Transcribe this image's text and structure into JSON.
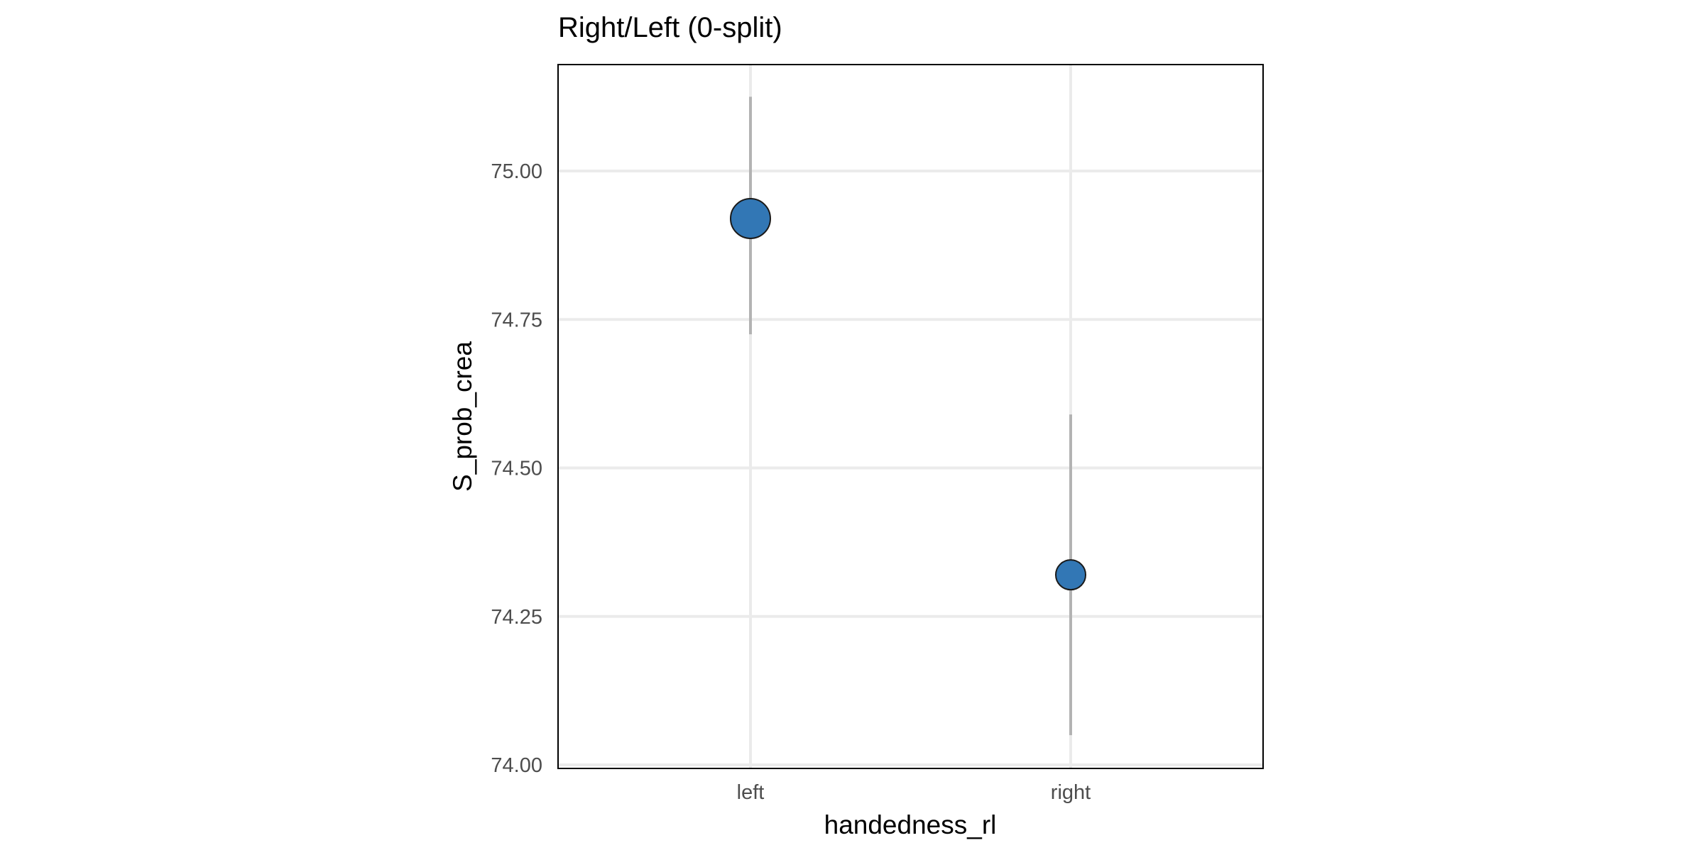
{
  "chart_data": {
    "type": "scatter",
    "title": "Right/Left (0-split)",
    "xlabel": "handedness_rl",
    "ylabel": "S_prob_crea",
    "categories": [
      "left",
      "right"
    ],
    "ylim": [
      74.0,
      75.18
    ],
    "y_ticks": [
      74.0,
      74.25,
      74.5,
      74.75,
      75.0
    ],
    "y_tick_labels": [
      "74.00",
      "74.25",
      "74.50",
      "74.75",
      "75.00"
    ],
    "grid": true,
    "legend": "none",
    "series": [
      {
        "values": [
          74.92,
          74.32
        ],
        "lower": [
          74.725,
          74.05
        ],
        "upper": [
          75.125,
          74.59
        ],
        "point_size_rank": [
          2,
          1
        ]
      }
    ],
    "colors": {
      "point_fill": "#3277b5",
      "point_stroke": "#1a1a1a",
      "error_bar": "#b3b3b3",
      "grid": "#ebebeb",
      "panel_border": "#000000"
    }
  }
}
